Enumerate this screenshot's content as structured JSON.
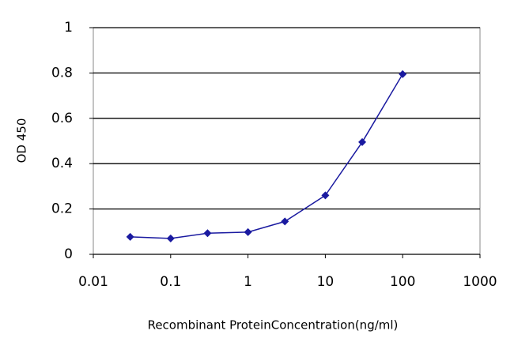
{
  "chart_data": {
    "type": "line",
    "x_label": "Recombinant ProteinConcentration(ng/ml)",
    "y_label": "OD 450",
    "x": [
      0.03,
      0.1,
      0.3,
      1,
      3,
      10,
      30,
      100
    ],
    "series": [
      {
        "color": "#1a1aa0",
        "values": [
          0.077,
          0.07,
          0.093,
          0.098,
          0.145,
          0.26,
          0.495,
          0.795
        ]
      }
    ],
    "xlim": [
      0.01,
      1000
    ],
    "xticks": [
      0.01,
      0.1,
      1,
      10,
      100,
      1000
    ],
    "xscale": "log",
    "ylim": [
      0,
      1
    ],
    "yticks": [
      0,
      0.2,
      0.4,
      0.6,
      0.8,
      1
    ],
    "grid": true
  }
}
